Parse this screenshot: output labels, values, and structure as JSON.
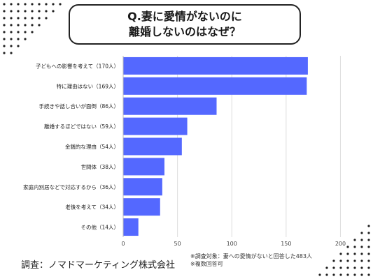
{
  "title": {
    "line1": "Q.妻に愛情がないのに",
    "line2": "離婚しないのはなぜ？"
  },
  "chart_data": {
    "type": "bar",
    "orientation": "horizontal",
    "categories": [
      "子どもへの影響を考えて（170人）",
      "特に理由はない（169人）",
      "手続きや話し合いが面倒（86人）",
      "離婚するほどではない（59人）",
      "金銭的な理由（54人）",
      "世間体（38人）",
      "家庭内別居などで対応するから（36人）",
      "老後を考えて（34人）",
      "その他（14人）"
    ],
    "values": [
      170,
      169,
      86,
      59,
      54,
      38,
      36,
      34,
      14
    ],
    "xlim": [
      0,
      210
    ],
    "xticks": [
      0,
      50,
      100,
      150,
      200
    ],
    "grid": true,
    "bar_color": "#5468ff"
  },
  "footer": {
    "source": "調査：ノマドマーケティング株式会社",
    "note1": "※調査対象：妻への愛情がないと回答した483人",
    "note2": "※複数回答可"
  }
}
